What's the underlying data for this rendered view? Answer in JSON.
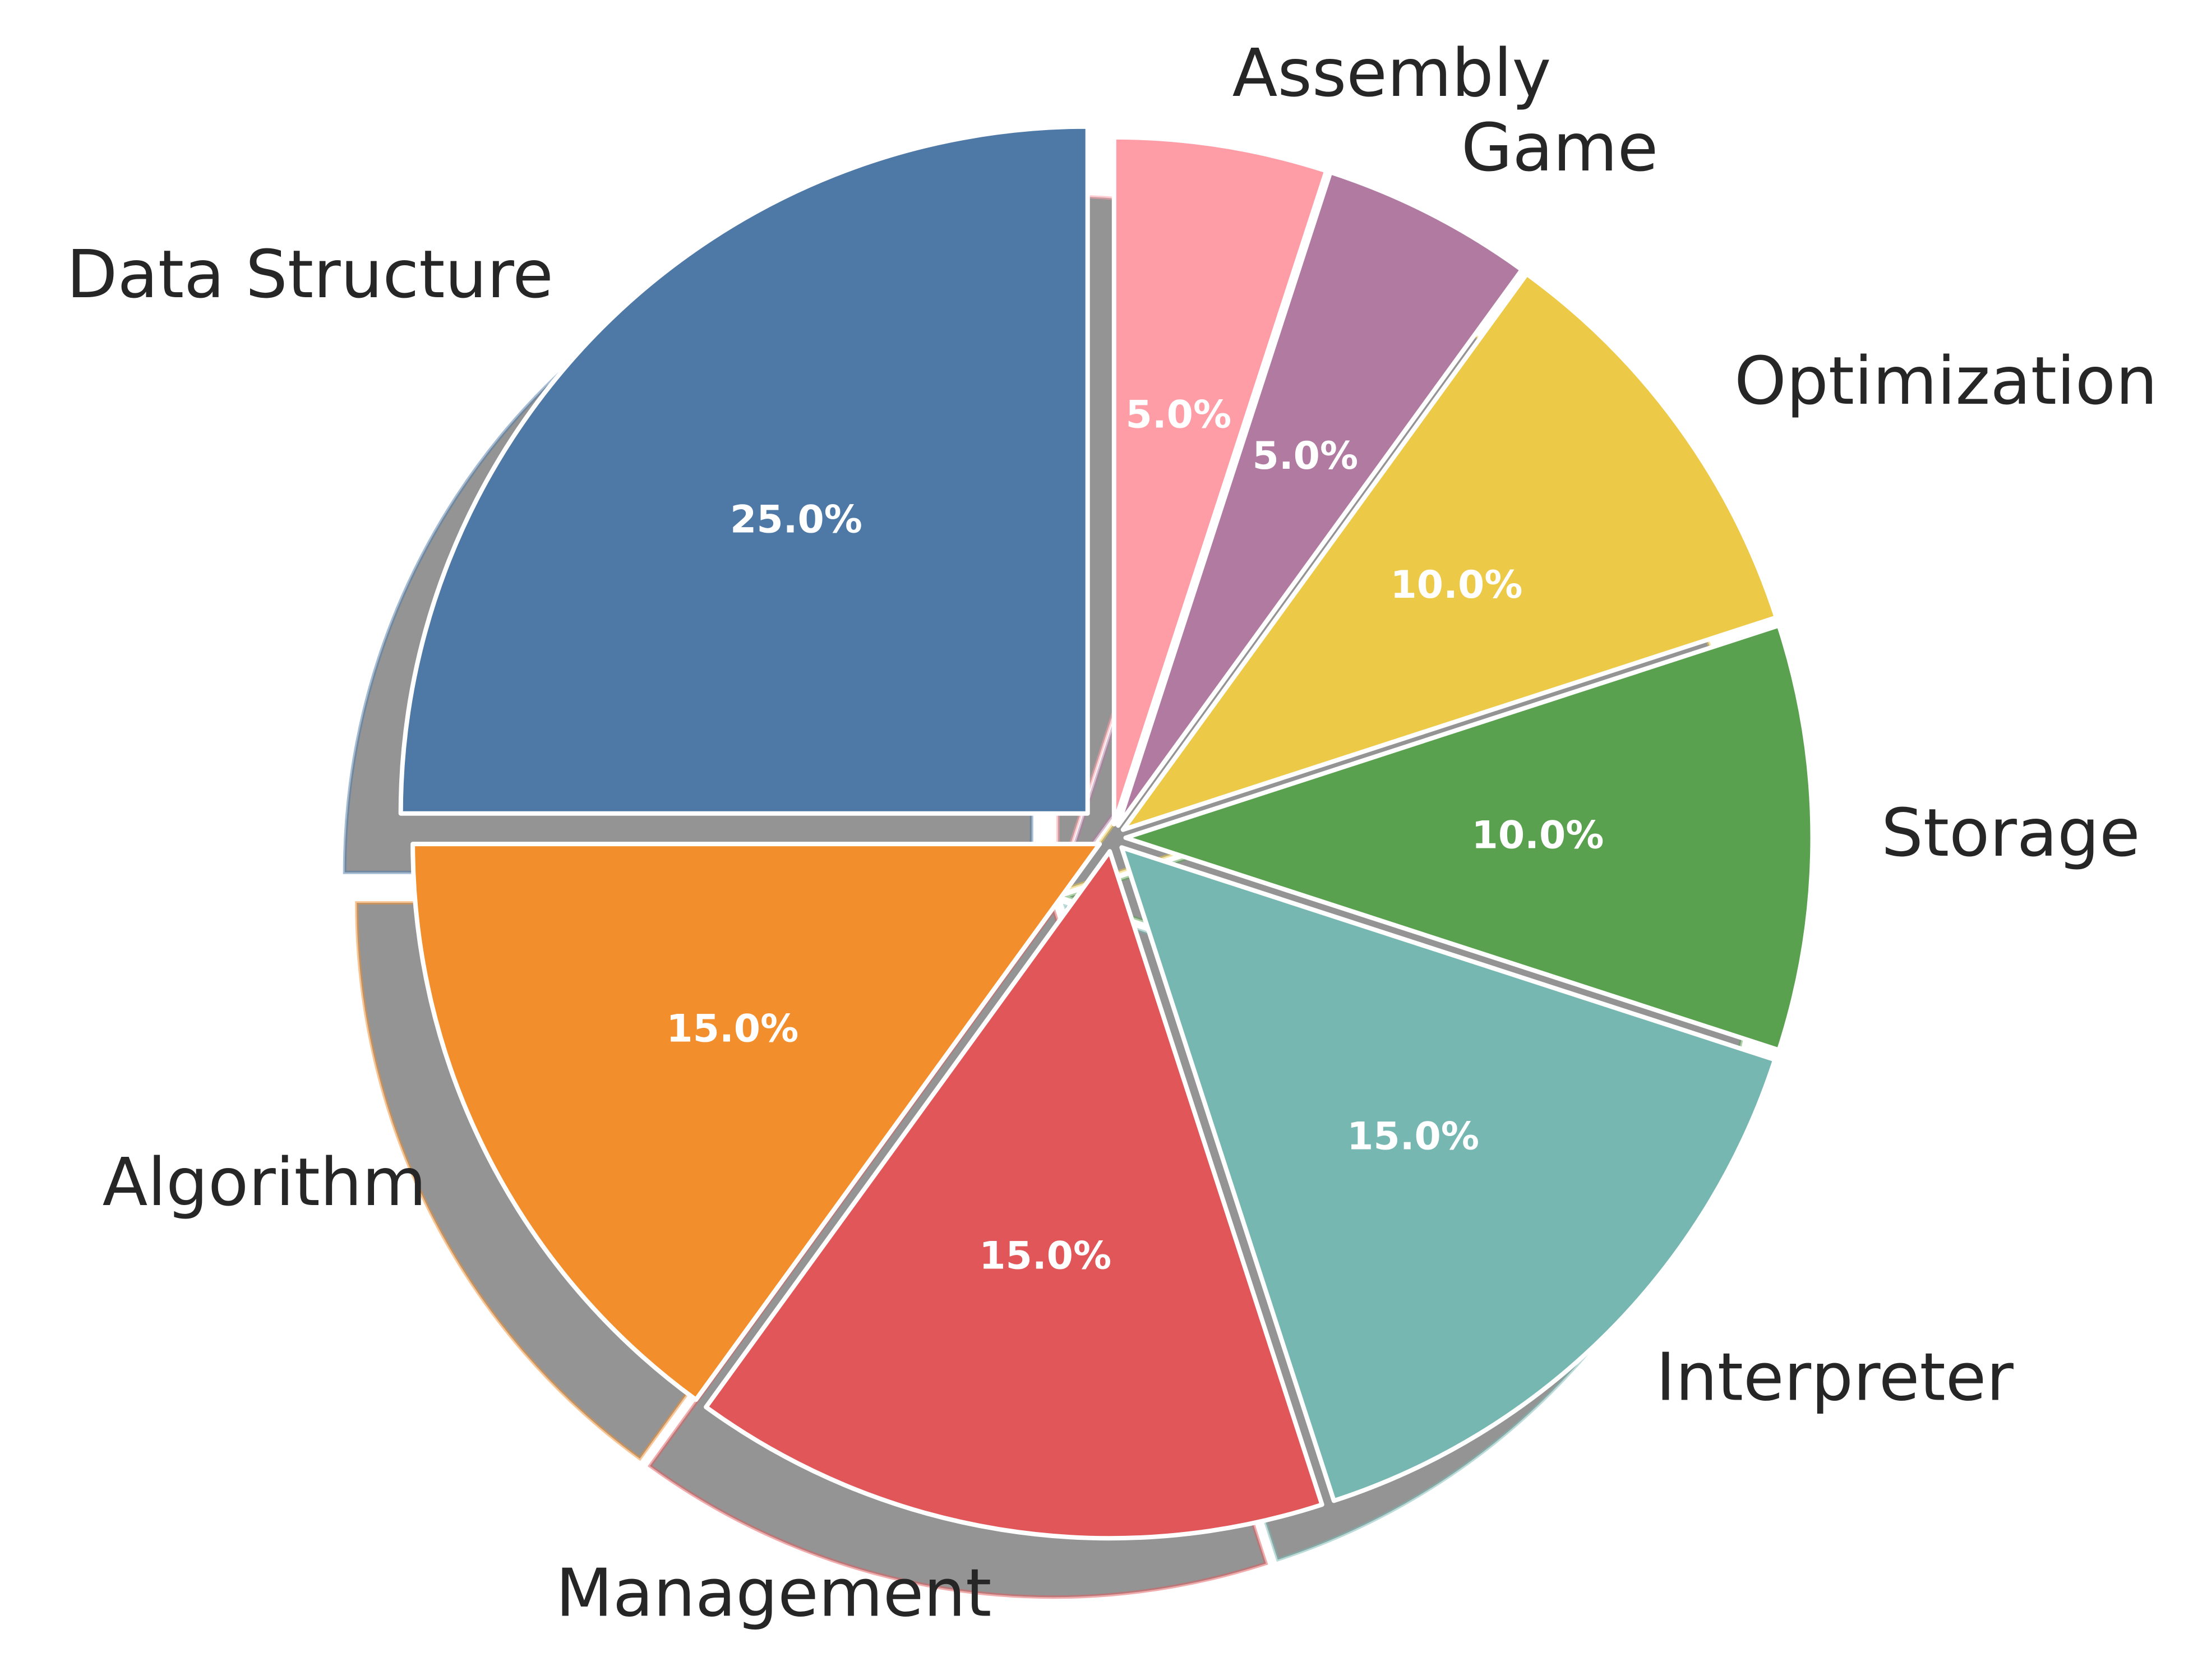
{
  "chart_data": {
    "type": "pie",
    "title": "",
    "categories": [
      "Data Structure",
      "Algorithm",
      "Management",
      "Interpreter",
      "Storage",
      "Optimization",
      "Game",
      "Assembly"
    ],
    "values": [
      25.0,
      15.0,
      15.0,
      15.0,
      10.0,
      10.0,
      5.0,
      5.0
    ],
    "pct_labels": [
      "25.0%",
      "15.0%",
      "15.0%",
      "15.0%",
      "10.0%",
      "10.0%",
      "5.0%",
      "5.0%"
    ],
    "colors": [
      "#4e79a7",
      "#f28e2b",
      "#e15759",
      "#76b7b2",
      "#59a14f",
      "#edc948",
      "#b07aa1",
      "#ff9da7"
    ],
    "start_angle_deg": 90,
    "direction": "counterclockwise",
    "shadow": true,
    "exploded": "Data Structure most, all slices slightly",
    "legend": "none"
  }
}
